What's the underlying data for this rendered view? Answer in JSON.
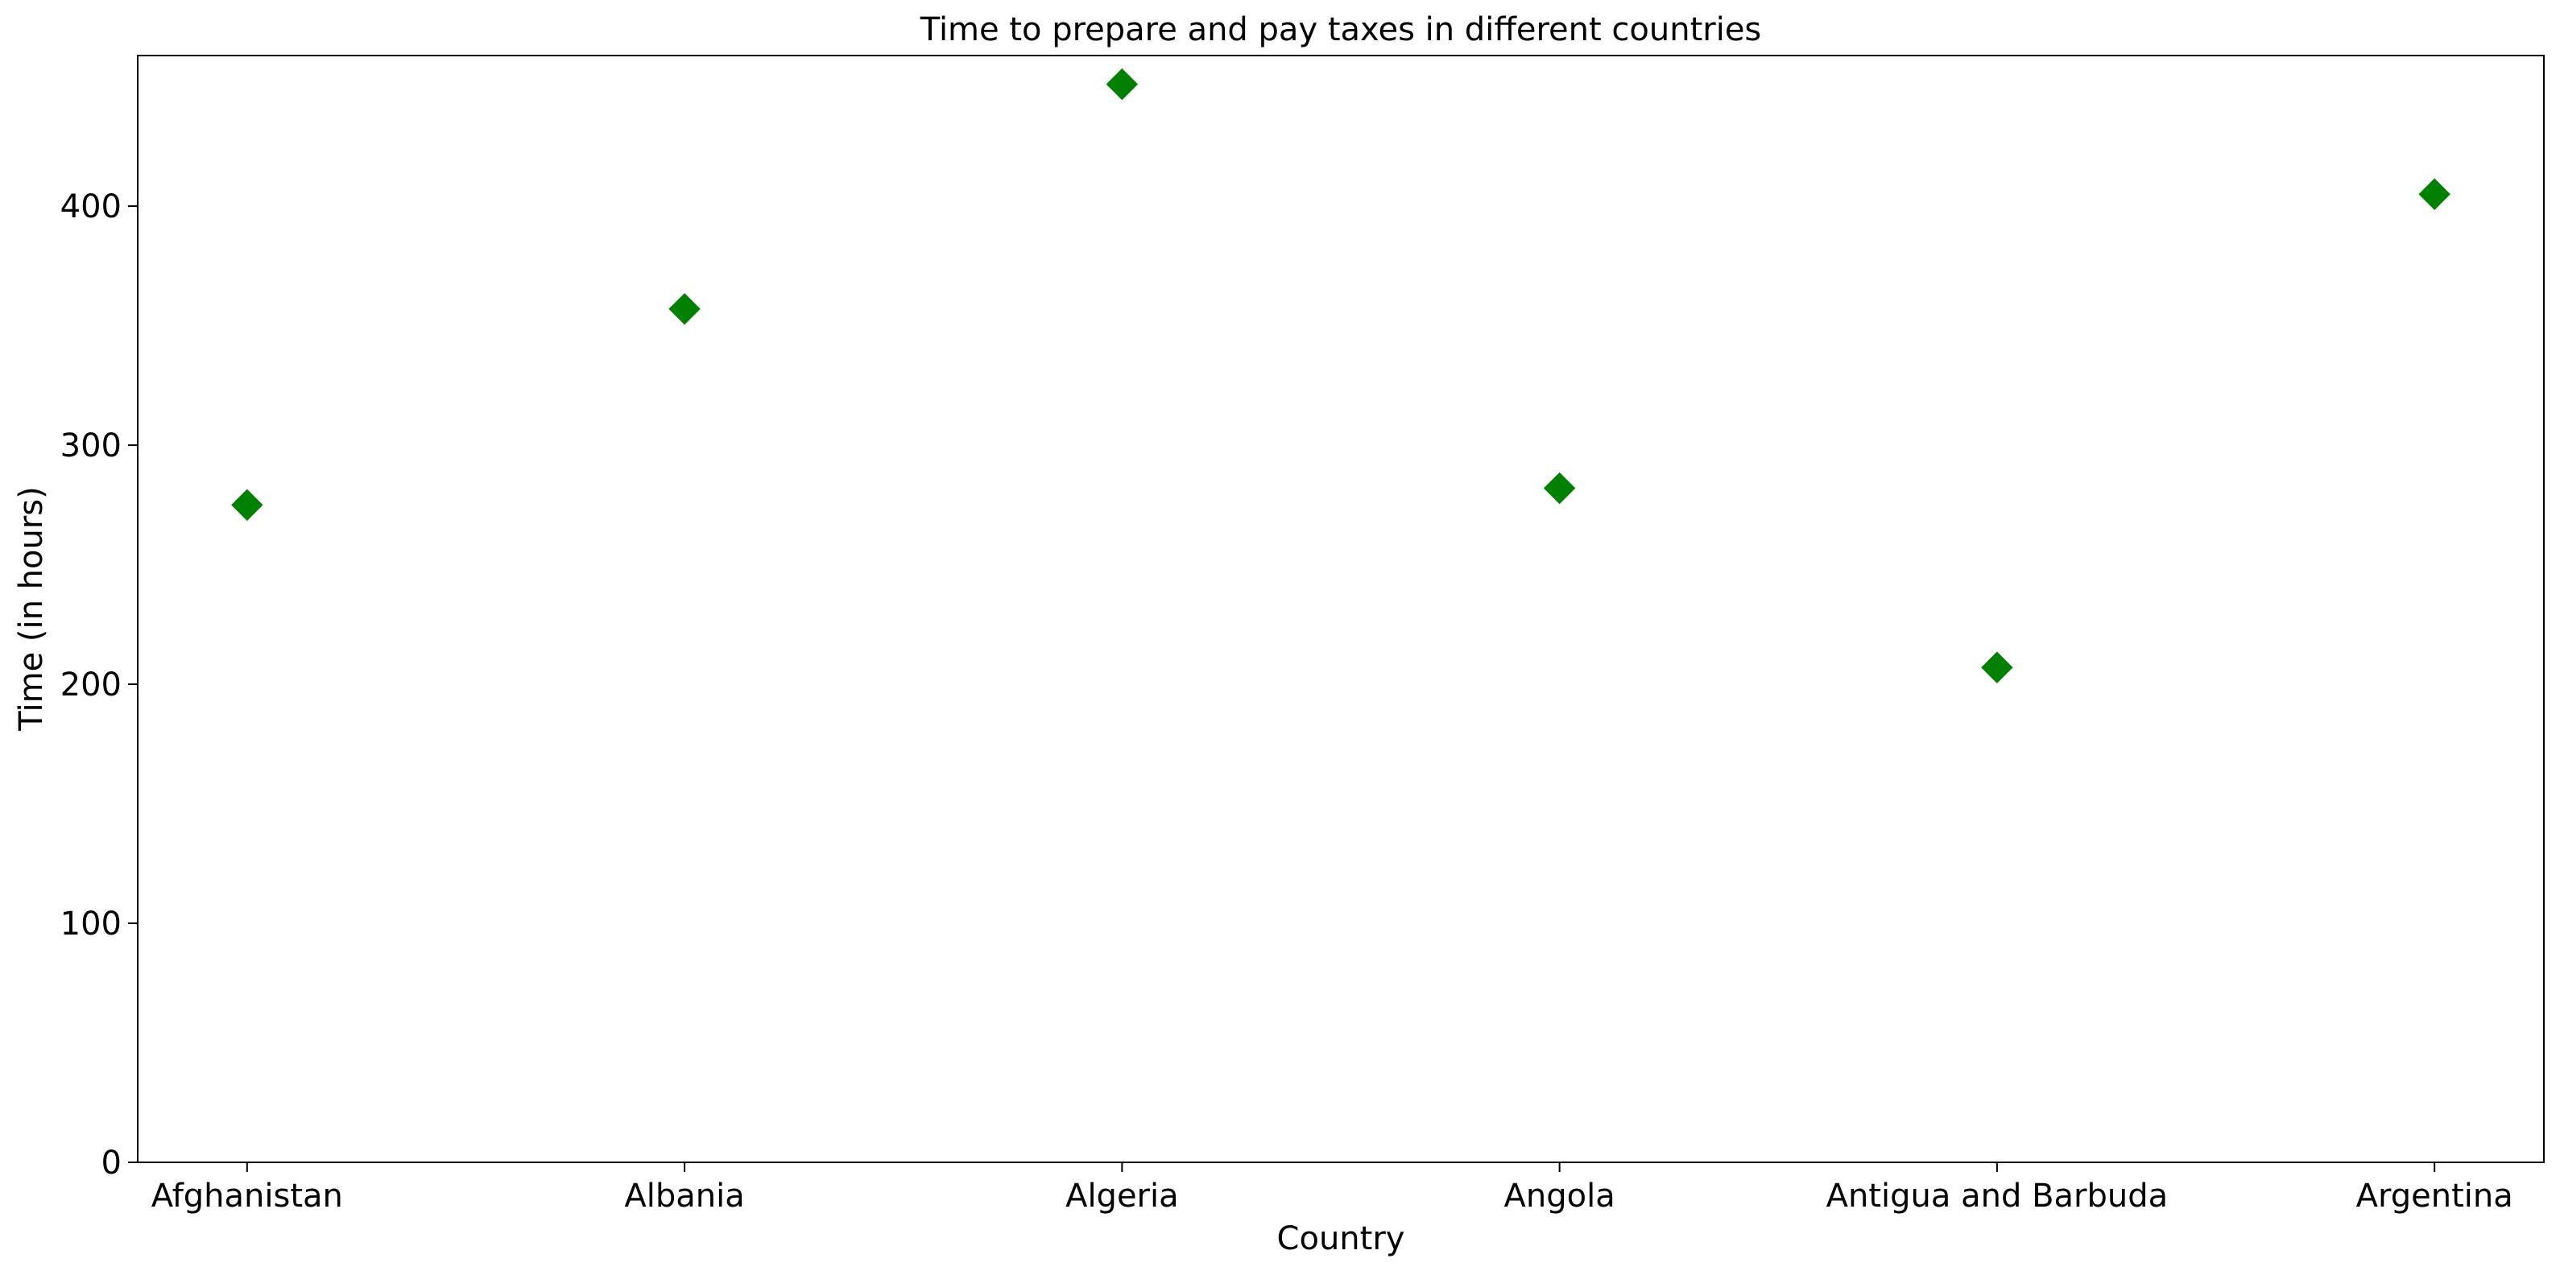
{
  "chart_data": {
    "type": "scatter",
    "title": "Time to prepare and pay taxes in different countries",
    "xlabel": "Country",
    "ylabel": "Time (in hours)",
    "categories": [
      "Afghanistan",
      "Albania",
      "Algeria",
      "Angola",
      "Antigua and Barbuda",
      "Argentina"
    ],
    "values": [
      275,
      357,
      451,
      282,
      207,
      405
    ],
    "ylim": [
      0,
      463
    ],
    "yticks": [
      0,
      100,
      200,
      300,
      400
    ],
    "marker": "diamond",
    "marker_color": "#008000",
    "grid": false,
    "legend": null
  }
}
